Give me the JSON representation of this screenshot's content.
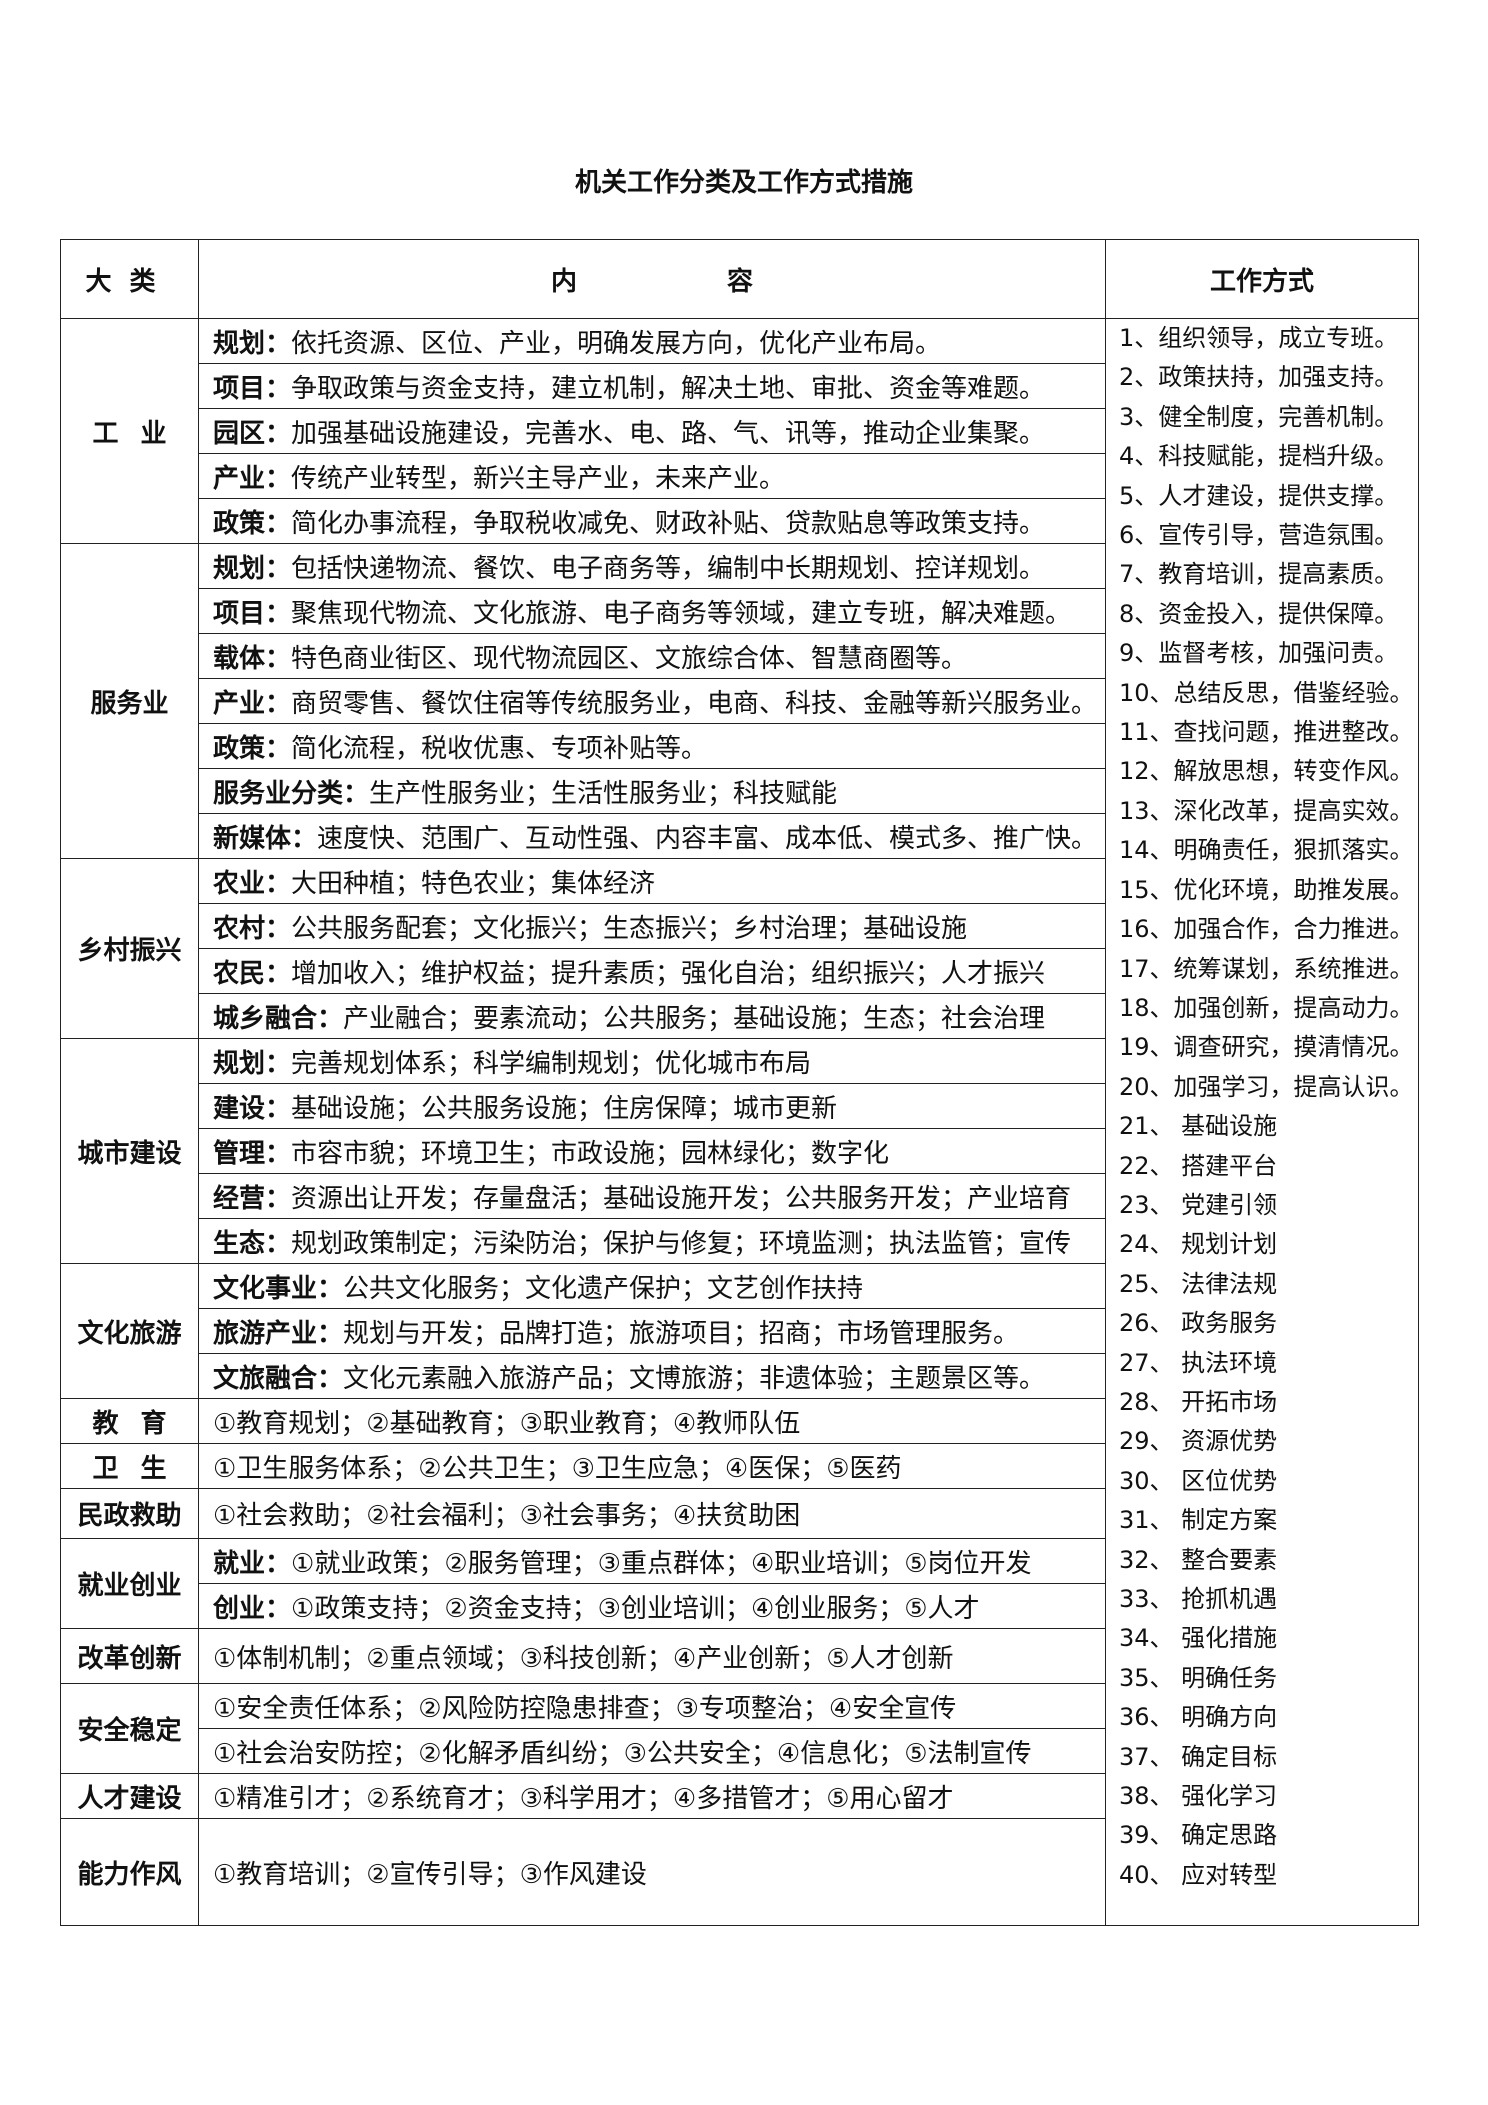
{
  "title": "机关工作分类及工作方式措施",
  "headers": {
    "category": "大类",
    "content": "内容",
    "methods": "工作方式"
  },
  "categories": [
    {
      "name": "工业",
      "items": [
        {
          "label": "规划：",
          "text": "依托资源、区位、产业，明确发展方向，优化产业布局。"
        },
        {
          "label": "项目：",
          "text": "争取政策与资金支持，建立机制，解决土地、审批、资金等难题。"
        },
        {
          "label": "园区：",
          "text": "加强基础设施建设，完善水、电、路、气、讯等，推动企业集聚。"
        },
        {
          "label": "产业：",
          "text": "传统产业转型，新兴主导产业，未来产业。"
        },
        {
          "label": "政策：",
          "text": "简化办事流程，争取税收减免、财政补贴、贷款贴息等政策支持。"
        }
      ]
    },
    {
      "name": "服务业",
      "items": [
        {
          "label": "规划：",
          "text": "包括快递物流、餐饮、电子商务等，编制中长期规划、控详规划。"
        },
        {
          "label": "项目：",
          "text": "聚焦现代物流、文化旅游、电子商务等领域，建立专班，解决难题。"
        },
        {
          "label": "载体：",
          "text": "特色商业街区、现代物流园区、文旅综合体、智慧商圈等。"
        },
        {
          "label": "产业：",
          "text": "商贸零售、餐饮住宿等传统服务业，电商、科技、金融等新兴服务业。"
        },
        {
          "label": "政策：",
          "text": "简化流程，税收优惠、专项补贴等。"
        },
        {
          "label": "服务业分类：",
          "text": "生产性服务业；生活性服务业；科技赋能"
        },
        {
          "label": "新媒体：",
          "text": "速度快、范围广、互动性强、内容丰富、成本低、模式多、推广快。"
        }
      ]
    },
    {
      "name": "乡村振兴",
      "items": [
        {
          "label": "农业：",
          "text": "大田种植；特色农业；集体经济"
        },
        {
          "label": "农村：",
          "text": "公共服务配套；文化振兴；生态振兴；乡村治理；基础设施"
        },
        {
          "label": "农民：",
          "text": "增加收入；维护权益；提升素质；强化自治；组织振兴；人才振兴"
        },
        {
          "label": "城乡融合：",
          "text": "产业融合；要素流动；公共服务；基础设施；生态；社会治理"
        }
      ]
    },
    {
      "name": "城市建设",
      "items": [
        {
          "label": "规划：",
          "text": "完善规划体系；科学编制规划；优化城市布局"
        },
        {
          "label": "建设：",
          "text": "基础设施；公共服务设施；住房保障；城市更新"
        },
        {
          "label": "管理：",
          "text": "市容市貌；环境卫生；市政设施；园林绿化；数字化"
        },
        {
          "label": "经营：",
          "text": "资源出让开发；存量盘活；基础设施开发；公共服务开发；产业培育"
        },
        {
          "label": "生态：",
          "text": "规划政策制定；污染防治；保护与修复；环境监测；执法监管；宣传"
        }
      ]
    },
    {
      "name": "文化旅游",
      "items": [
        {
          "label": "文化事业：",
          "text": "公共文化服务；文化遗产保护；文艺创作扶持"
        },
        {
          "label": "旅游产业：",
          "text": "规划与开发；品牌打造；旅游项目；招商；市场管理服务。"
        },
        {
          "label": "文旅融合：",
          "text": "文化元素融入旅游产品；文博旅游；非遗体验；主题景区等。"
        }
      ]
    },
    {
      "name": "教育",
      "items": [
        {
          "label": "",
          "text": "①教育规划；②基础教育；③职业教育；④教师队伍"
        }
      ]
    },
    {
      "name": "卫生",
      "items": [
        {
          "label": "",
          "text": "①卫生服务体系；②公共卫生；③卫生应急；④医保；⑤医药"
        }
      ]
    },
    {
      "name": "民政救助",
      "items": [
        {
          "label": "",
          "text": "①社会救助；②社会福利；③社会事务；④扶贫助困"
        }
      ]
    },
    {
      "name": "就业创业",
      "items": [
        {
          "label": "就业：",
          "text": "①就业政策；②服务管理；③重点群体；④职业培训；⑤岗位开发"
        },
        {
          "label": "创业：",
          "text": "①政策支持；②资金支持；③创业培训；④创业服务；⑤人才"
        }
      ]
    },
    {
      "name": "改革创新",
      "items": [
        {
          "label": "",
          "text": "①体制机制；②重点领域；③科技创新；④产业创新；⑤人才创新"
        }
      ]
    },
    {
      "name": "安全稳定",
      "items": [
        {
          "label": "",
          "text": "①安全责任体系；②风险防控隐患排查；③专项整治；④安全宣传"
        },
        {
          "label": "",
          "text": "①社会治安防控；②化解矛盾纠纷；③公共安全；④信息化；⑤法制宣传"
        }
      ]
    },
    {
      "name": "人才建设",
      "items": [
        {
          "label": "",
          "text": "①精准引才；②系统育才；③科学用才；④多措管才；⑤用心留才"
        }
      ]
    },
    {
      "name": "能力作风",
      "items": [
        {
          "label": "",
          "text": "①教育培训；②宣传引导；③作风建设"
        }
      ]
    }
  ],
  "methods": [
    "1、组织领导，成立专班。",
    "2、政策扶持，加强支持。",
    "3、健全制度，完善机制。",
    "4、科技赋能，提档升级。",
    "5、人才建设，提供支撑。",
    "6、宣传引导，营造氛围。",
    "7、教育培训，提高素质。",
    "8、资金投入，提供保障。",
    "9、监督考核，加强问责。",
    "10、总结反思，借鉴经验。",
    "11、查找问题，推进整改。",
    "12、解放思想，转变作风。",
    "13、深化改革，提高实效。",
    "14、明确责任，狠抓落实。",
    "15、优化环境，助推发展。",
    "16、加强合作，合力推进。",
    "17、统筹谋划，系统推进。",
    "18、加强创新，提高动力。",
    "19、调查研究，摸清情况。",
    "20、加强学习，提高认识。",
    "21、 基础设施",
    "22、 搭建平台",
    "23、 党建引领",
    "24、 规划计划",
    "25、 法律法规",
    "26、 政务服务",
    "27、 执法环境",
    "28、 开拓市场",
    "29、 资源优势",
    "30、 区位优势",
    "31、 制定方案",
    "32、 整合要素",
    "33、 抢抓机遇",
    "34、 强化措施",
    "35、 明确任务",
    "36、 明确方向",
    "37、 确定目标",
    "38、 强化学习",
    "39、 确定思路",
    "40、 应对转型"
  ]
}
